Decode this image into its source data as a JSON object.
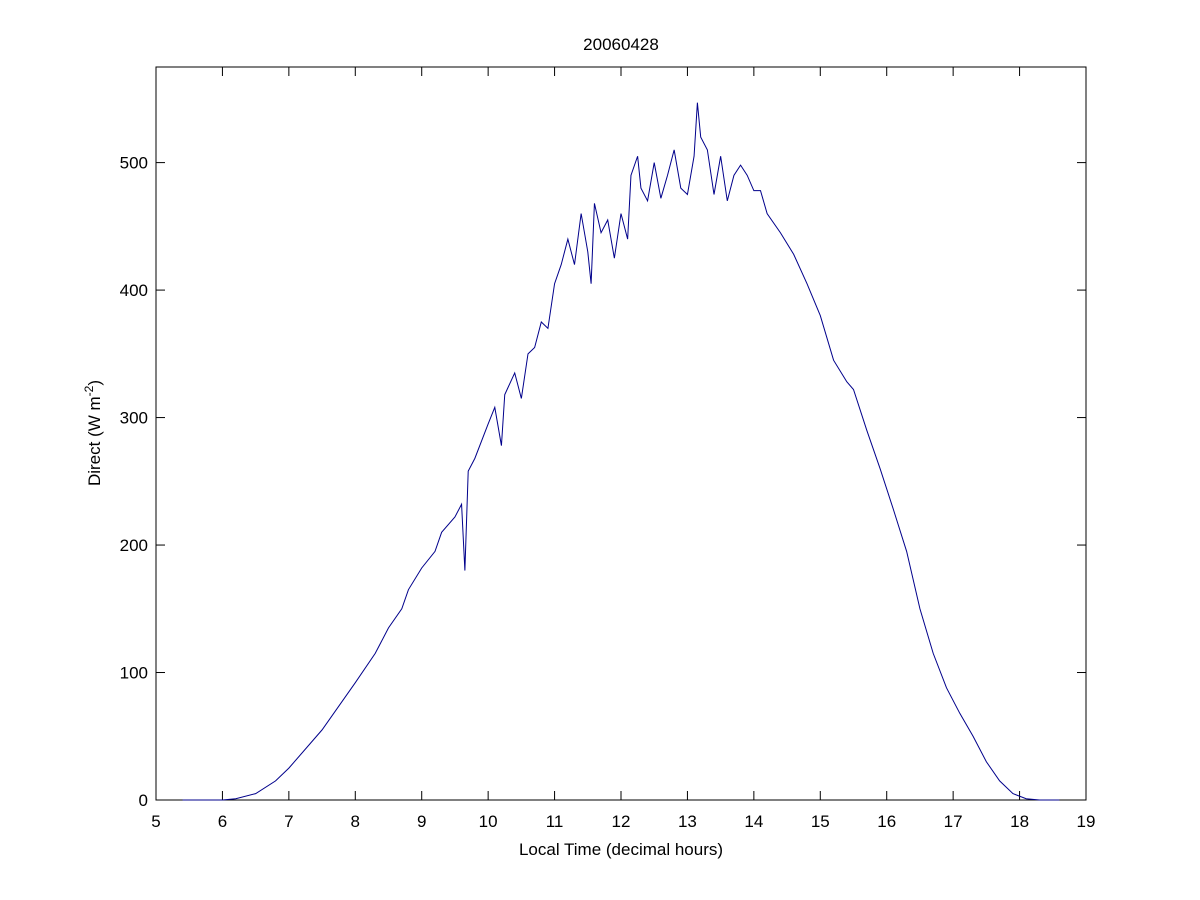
{
  "chart_data": {
    "type": "line",
    "title": "20060428",
    "xlabel": "Local Time (decimal hours)",
    "ylabel": [
      "Direct (W m",
      "-2",
      ")"
    ],
    "xlim": [
      5,
      19
    ],
    "xticks": [
      5,
      6,
      7,
      8,
      9,
      10,
      11,
      12,
      13,
      14,
      15,
      16,
      17,
      18,
      19
    ],
    "ylim": [
      0,
      575
    ],
    "yticks": [
      0,
      100,
      200,
      300,
      400,
      500
    ],
    "grid": false,
    "series": [
      {
        "color": "#00008b",
        "x": [
          5.4,
          6.0,
          6.2,
          6.5,
          6.8,
          7.0,
          7.5,
          8.0,
          8.3,
          8.5,
          8.7,
          8.8,
          9.0,
          9.2,
          9.3,
          9.5,
          9.6,
          9.65,
          9.7,
          9.8,
          10.0,
          10.1,
          10.2,
          10.25,
          10.4,
          10.5,
          10.6,
          10.7,
          10.8,
          10.9,
          11.0,
          11.1,
          11.2,
          11.3,
          11.4,
          11.5,
          11.55,
          11.6,
          11.7,
          11.8,
          11.9,
          12.0,
          12.1,
          12.15,
          12.25,
          12.3,
          12.4,
          12.5,
          12.6,
          12.7,
          12.8,
          12.9,
          13.0,
          13.1,
          13.15,
          13.2,
          13.3,
          13.4,
          13.5,
          13.6,
          13.7,
          13.8,
          13.9,
          14.0,
          14.1,
          14.2,
          14.4,
          14.6,
          14.8,
          15.0,
          15.2,
          15.4,
          15.5,
          15.7,
          15.9,
          16.1,
          16.3,
          16.5,
          16.7,
          16.9,
          17.1,
          17.3,
          17.5,
          17.7,
          17.9,
          18.1,
          18.3,
          18.6
        ],
        "values": [
          0,
          0,
          1,
          5,
          15,
          25,
          55,
          92,
          115,
          135,
          150,
          165,
          182,
          195,
          210,
          222,
          232,
          180,
          258,
          268,
          295,
          308,
          278,
          318,
          335,
          315,
          350,
          355,
          375,
          370,
          405,
          420,
          440,
          420,
          460,
          430,
          405,
          468,
          445,
          455,
          425,
          460,
          440,
          490,
          505,
          480,
          470,
          500,
          472,
          490,
          510,
          480,
          475,
          505,
          547,
          520,
          510,
          475,
          505,
          470,
          490,
          498,
          490,
          478,
          478,
          460,
          445,
          428,
          405,
          380,
          345,
          328,
          322,
          290,
          260,
          228,
          195,
          150,
          115,
          88,
          68,
          50,
          30,
          15,
          5,
          1,
          0,
          0
        ]
      }
    ]
  }
}
